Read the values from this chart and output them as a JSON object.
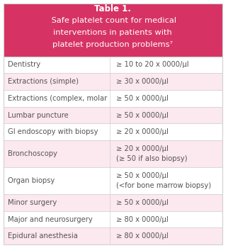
{
  "title_bold": "Table 1.",
  "title_rest": " Safe platelet count for medical\ninterventions in patients with\nplatelet production problems",
  "title_superscript": "7",
  "header_bg": "#d63364",
  "header_text_color": "#ffffff",
  "row_bg_even": "#ffffff",
  "row_bg_odd": "#fce8ef",
  "border_color": "#d0d0d0",
  "text_color": "#555555",
  "fig_bg": "#ffffff",
  "rows": [
    [
      "Dentistry",
      "≥ 10 to 20 x 0000/µl"
    ],
    [
      "Extractions (simple)",
      "≥ 30 x 0000/µl"
    ],
    [
      "Extractions (complex, molar",
      "≥ 50 x 0000/µl"
    ],
    [
      "Lumbar puncture",
      "≥ 50 x 0000/µl"
    ],
    [
      "GI endoscopy with biopsy",
      "≥ 20 x 0000/µl"
    ],
    [
      "Bronchoscopy",
      "≥ 20 x 0000/µl\n(≥ 50 if also biopsy)"
    ],
    [
      "Organ biopsy",
      "≥ 50 x 0000/µl\n(<for bone marrow biopsy)"
    ],
    [
      "Minor surgery",
      "≥ 50 x 0000/µl"
    ],
    [
      "Major and neurosurgery",
      "≥ 80 x 0000/µl"
    ],
    [
      "Epidural anesthesia",
      "≥ 80 x 0000/µl"
    ]
  ],
  "col_split": 0.485,
  "font_size_title": 8.5,
  "font_size_body": 7.2
}
